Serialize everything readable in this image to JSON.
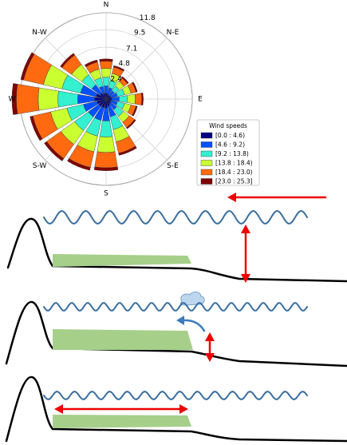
{
  "chart_data": {
    "type": "windrose",
    "categories": [
      "N",
      null,
      "N-E",
      null,
      "E",
      null,
      "S-E",
      null,
      "S",
      null,
      "S-W",
      null,
      "W",
      null,
      "N-W",
      null
    ],
    "legend_title": "Wind speeds",
    "rlim": [
      0,
      11.8
    ],
    "rticks": [
      2.4,
      4.8,
      7.1,
      9.5,
      11.8
    ],
    "grid": true,
    "series": [
      {
        "name": "[0.0 : 4.6)",
        "color": "#00007f",
        "values": [
          0.8,
          0.7,
          0.6,
          0.7,
          0.8,
          0.7,
          0.8,
          1.0,
          1.2,
          1.2,
          1.2,
          1.3,
          1.6,
          1.4,
          1.0,
          0.8
        ]
      },
      {
        "name": "[4.6 : 9.2)",
        "color": "#0050ff",
        "values": [
          1.0,
          0.9,
          0.8,
          0.9,
          1.0,
          0.9,
          1.0,
          1.5,
          1.8,
          1.8,
          1.8,
          1.9,
          2.3,
          2.2,
          1.4,
          1.0
        ]
      },
      {
        "name": "[9.2 : 13.8)",
        "color": "#33f0d0",
        "values": [
          1.2,
          1.0,
          0.8,
          1.0,
          1.1,
          1.0,
          1.1,
          1.8,
          2.2,
          2.2,
          2.3,
          2.3,
          2.7,
          2.6,
          1.7,
          1.2
        ]
      },
      {
        "name": "[13.8 : 18.4)",
        "color": "#caff30",
        "values": [
          1.2,
          1.0,
          0.8,
          0.9,
          1.1,
          0.9,
          1.0,
          1.7,
          2.1,
          2.2,
          2.3,
          2.3,
          2.7,
          2.6,
          1.7,
          1.2
        ]
      },
      {
        "name": "[18.4 : 23.0)",
        "color": "#ff6a10",
        "values": [
          1.0,
          0.9,
          0.6,
          0.7,
          0.9,
          0.7,
          0.9,
          1.6,
          2.1,
          2.2,
          2.4,
          2.5,
          3.0,
          2.8,
          1.6,
          1.0
        ]
      },
      {
        "name": "[23.0 : 25.3]",
        "color": "#7f0000",
        "values": [
          0.3,
          0.2,
          0.2,
          0.2,
          0.2,
          0.2,
          0.2,
          0.3,
          0.4,
          0.4,
          0.4,
          0.4,
          0.6,
          0.4,
          0.3,
          0.3
        ]
      }
    ]
  }
}
